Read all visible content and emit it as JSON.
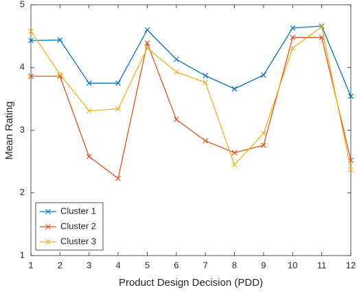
{
  "chart_data": {
    "type": "line",
    "x_label": "Product Design Decision (PDD)",
    "y_label": "Mean Rating",
    "x": [
      1,
      2,
      3,
      4,
      5,
      6,
      7,
      8,
      9,
      10,
      11,
      12
    ],
    "series": [
      {
        "name": "Cluster 1",
        "color": "#0072BD",
        "values": [
          4.43,
          4.44,
          3.75,
          3.75,
          4.6,
          4.13,
          3.87,
          3.66,
          3.88,
          4.63,
          4.66,
          3.54
        ]
      },
      {
        "name": "Cluster 2",
        "color": "#D95319",
        "values": [
          3.86,
          3.86,
          2.58,
          2.23,
          4.39,
          3.17,
          2.83,
          2.64,
          2.76,
          4.48,
          4.48,
          2.52
        ]
      },
      {
        "name": "Cluster 3",
        "color": "#EDB120",
        "values": [
          4.58,
          3.89,
          3.31,
          3.34,
          4.31,
          3.93,
          3.76,
          2.45,
          2.95,
          4.31,
          4.65,
          2.37
        ]
      }
    ],
    "xlim": [
      1,
      12
    ],
    "xticks": [
      1,
      2,
      3,
      4,
      5,
      6,
      7,
      8,
      9,
      10,
      11,
      12
    ],
    "ylim": [
      1,
      5
    ],
    "yticks": [
      1,
      2,
      3,
      4,
      5
    ],
    "legend": "lower left",
    "grid": false
  }
}
